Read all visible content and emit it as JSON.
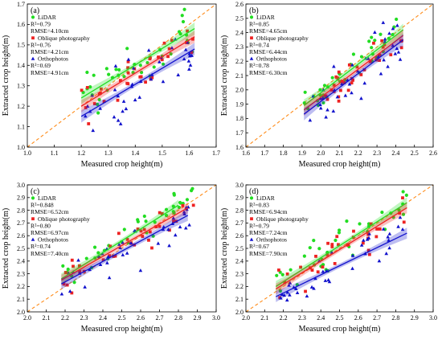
{
  "colors": {
    "LiDAR": "#22dd22",
    "Oblique photography": "#ee2222",
    "Orthophotos": "#1111cc",
    "diagonal": "#ff8c1a"
  },
  "chart_data": [
    {
      "type": "scatter",
      "panel": "(a)",
      "xlabel": "Measured crop height(m)",
      "ylabel": "Extracted crop height(m)",
      "xlim": [
        1.0,
        1.7
      ],
      "ylim": [
        1.0,
        1.7
      ],
      "xticks": [
        "1.0",
        "1.1",
        "1.2",
        "1.3",
        "1.4",
        "1.5",
        "1.6",
        "1.7"
      ],
      "yticks": [
        "1.0",
        "1.1",
        "1.2",
        "1.3",
        "1.4",
        "1.5",
        "1.6",
        "1.7"
      ],
      "x_range": [
        1.2,
        1.62
      ],
      "series": [
        {
          "name": "LiDAR",
          "marker": "circle",
          "stats": [
            "R²=0.79",
            "RMSE=4.10cm"
          ],
          "fit": [
            [
              1.2,
              1.24
            ],
            [
              1.62,
              1.58
            ]
          ],
          "spread": 0.06
        },
        {
          "name": "Oblique photography",
          "marker": "square",
          "stats": [
            "R²=0.76",
            "RMSE=4.21cm"
          ],
          "fit": [
            [
              1.2,
              1.2
            ],
            [
              1.62,
              1.54
            ]
          ],
          "spread": 0.06
        },
        {
          "name": "Orthophotos",
          "marker": "triangle",
          "stats": [
            "R²=0.69",
            "RMSE=4.91cm"
          ],
          "fit": [
            [
              1.2,
              1.15
            ],
            [
              1.62,
              1.48
            ]
          ],
          "spread": 0.07
        }
      ]
    },
    {
      "type": "scatter",
      "panel": "(b)",
      "xlabel": "Measured crop height(m)",
      "ylabel": "Extracted crop height(m)",
      "xlim": [
        1.6,
        2.6
      ],
      "ylim": [
        1.6,
        2.6
      ],
      "xticks": [
        "1.6",
        "1.7",
        "1.8",
        "1.9",
        "2.0",
        "2.1",
        "2.2",
        "2.3",
        "2.4",
        "2.5",
        "2.6"
      ],
      "yticks": [
        "1.6",
        "1.7",
        "1.8",
        "1.9",
        "2.0",
        "2.1",
        "2.2",
        "2.3",
        "2.4",
        "2.5",
        "2.6"
      ],
      "x_range": [
        1.91,
        2.44
      ],
      "series": [
        {
          "name": "LiDAR",
          "marker": "circle",
          "stats": [
            "R²=0.85",
            "RMSE=4.65cm"
          ],
          "fit": [
            [
              1.91,
              1.89
            ],
            [
              2.44,
              2.42
            ]
          ],
          "spread": 0.06
        },
        {
          "name": "Oblique photography",
          "marker": "square",
          "stats": [
            "R²=0.74",
            "RMSE=6.44cm"
          ],
          "fit": [
            [
              1.91,
              1.86
            ],
            [
              2.44,
              2.38
            ]
          ],
          "spread": 0.07
        },
        {
          "name": "Orthophotos",
          "marker": "triangle",
          "stats": [
            "R²=0.78",
            "RMSE=6.30cm"
          ],
          "fit": [
            [
              1.91,
              1.83
            ],
            [
              2.44,
              2.35
            ]
          ],
          "spread": 0.08
        }
      ]
    },
    {
      "type": "scatter",
      "panel": "(c)",
      "xlabel": "Measured crop height(m)",
      "ylabel": "Extracted crop height(m)",
      "xlim": [
        2.0,
        3.0
      ],
      "ylim": [
        2.0,
        3.0
      ],
      "xticks": [
        "2.0",
        "2.1",
        "2.2",
        "2.3",
        "2.4",
        "2.5",
        "2.6",
        "2.7",
        "2.8",
        "2.9",
        "3.0"
      ],
      "yticks": [
        "2.0",
        "2.1",
        "2.2",
        "2.3",
        "2.4",
        "2.5",
        "2.6",
        "2.7",
        "2.8",
        "2.9",
        "3.0"
      ],
      "x_range": [
        2.18,
        2.88
      ],
      "series": [
        {
          "name": "LiDAR",
          "marker": "circle",
          "stats": [
            "R²=0.848",
            "RMSE=6.52cm"
          ],
          "fit": [
            [
              2.18,
              2.26
            ],
            [
              2.8,
              2.84
            ]
          ],
          "spread": 0.07
        },
        {
          "name": "Oblique photography",
          "marker": "square",
          "stats": [
            "R²=0.80",
            "RMSE=6.97cm"
          ],
          "fit": [
            [
              2.18,
              2.25
            ],
            [
              2.85,
              2.82
            ]
          ],
          "spread": 0.07
        },
        {
          "name": "Orthophotos",
          "marker": "triangle",
          "stats": [
            "R²=0.74",
            "RMSE=7.40cm"
          ],
          "fit": [
            [
              2.18,
              2.22
            ],
            [
              2.85,
              2.76
            ]
          ],
          "spread": 0.09
        }
      ]
    },
    {
      "type": "scatter",
      "panel": "(d)",
      "xlabel": "Measured crop height(m)",
      "ylabel": "Extracted crop height(m)",
      "xlim": [
        2.0,
        3.0
      ],
      "ylim": [
        2.0,
        3.0
      ],
      "xticks": [
        "2.0",
        "2.1",
        "2.2",
        "2.3",
        "2.4",
        "2.5",
        "2.6",
        "2.7",
        "2.8",
        "2.9",
        "3.0"
      ],
      "yticks": [
        "2.0",
        "2.1",
        "2.2",
        "2.3",
        "2.4",
        "2.5",
        "2.6",
        "2.7",
        "2.8",
        "2.9",
        "3.0"
      ],
      "x_range": [
        2.16,
        2.86
      ],
      "series": [
        {
          "name": "LiDAR",
          "marker": "circle",
          "stats": [
            "R²=0.83",
            "RMSE=6.94cm"
          ],
          "fit": [
            [
              2.16,
              2.2
            ],
            [
              2.86,
              2.86
            ]
          ],
          "spread": 0.07
        },
        {
          "name": "Oblique photography",
          "marker": "square",
          "stats": [
            "R²=0.79",
            "RMSE=7.24cm"
          ],
          "fit": [
            [
              2.16,
              2.18
            ],
            [
              2.86,
              2.82
            ]
          ],
          "spread": 0.07
        },
        {
          "name": "Orthophotos",
          "marker": "triangle",
          "stats": [
            "R²=0.67",
            "RMSE=7.90cm"
          ],
          "fit": [
            [
              2.16,
              2.12
            ],
            [
              2.86,
              2.62
            ]
          ],
          "spread": 0.09
        }
      ]
    }
  ]
}
